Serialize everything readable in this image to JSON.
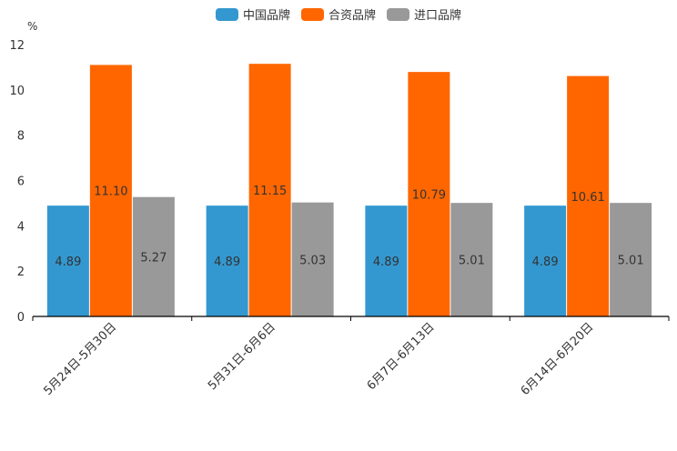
{
  "chart_data": {
    "type": "bar",
    "unit_label": "%",
    "categories": [
      "5月24日-5月30日",
      "5月31日-6月6日",
      "6月7日-6月13日",
      "6月14日-6月20日"
    ],
    "series": [
      {
        "name": "中国品牌",
        "color": "#3398d0",
        "values": [
          4.89,
          4.89,
          4.89,
          4.89
        ],
        "labels": [
          "4.89",
          "4.89",
          "4.89",
          "4.89"
        ]
      },
      {
        "name": "合资品牌",
        "color": "#ff6600",
        "values": [
          11.1,
          11.15,
          10.79,
          10.61
        ],
        "labels": [
          "11.10",
          "11.15",
          "10.79",
          "10.61"
        ]
      },
      {
        "name": "进口品牌",
        "color": "#999999",
        "values": [
          5.27,
          5.03,
          5.01,
          5.01
        ],
        "labels": [
          "5.27",
          "5.03",
          "5.01",
          "5.01"
        ]
      }
    ],
    "ylim": [
      0,
      12
    ],
    "yticks": [
      "0",
      "2",
      "4",
      "6",
      "8",
      "10",
      "12"
    ],
    "legend_position": "top-center",
    "grid": false
  }
}
